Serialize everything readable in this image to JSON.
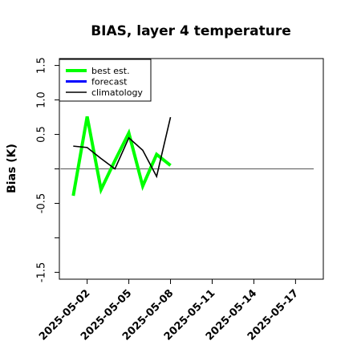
{
  "chart_data": {
    "type": "line",
    "title": "BIAS, layer 4 temperature",
    "ylabel": "Bias (K)",
    "xlabel": "",
    "xlim": [
      "2025-04-30",
      "2025-05-19"
    ],
    "ylim": [
      -1.6,
      1.6
    ],
    "yticks": [
      -1.5,
      -1.0,
      -0.5,
      0.0,
      0.5,
      1.0,
      1.5
    ],
    "ytick_labels": [
      "-1.5",
      "",
      "-0.5",
      "",
      "0.5",
      "1.0",
      "1.5"
    ],
    "xticks": [
      "2025-05-02",
      "2025-05-05",
      "2025-05-08",
      "2025-05-11",
      "2025-05-14",
      "2025-05-17"
    ],
    "xtick_colors": [
      "#000000",
      "#000000",
      "#228B22",
      "#000000",
      "#000000",
      "#000000"
    ],
    "reference_line": {
      "y": 0,
      "color": "#555555"
    },
    "legend": {
      "placement": "top-left"
    },
    "grid": false,
    "series": [
      {
        "name": "best est.",
        "color": "#00FF00",
        "x": [
          "2025-05-01",
          "2025-05-02",
          "2025-05-03",
          "2025-05-04",
          "2025-05-05",
          "2025-05-06",
          "2025-05-07",
          "2025-05-08"
        ],
        "y": [
          -0.39,
          0.76,
          -0.3,
          0.12,
          0.52,
          -0.25,
          0.21,
          0.05
        ]
      },
      {
        "name": "forecast",
        "color": "#0000FF",
        "x": [],
        "y": []
      },
      {
        "name": "climatology",
        "color": "#000000",
        "x": [
          "2025-05-01",
          "2025-05-02",
          "2025-05-03",
          "2025-05-04",
          "2025-05-05",
          "2025-05-06",
          "2025-05-07",
          "2025-05-08"
        ],
        "y": [
          0.33,
          0.31,
          0.15,
          0.0,
          0.45,
          0.27,
          -0.11,
          0.75
        ]
      }
    ]
  }
}
